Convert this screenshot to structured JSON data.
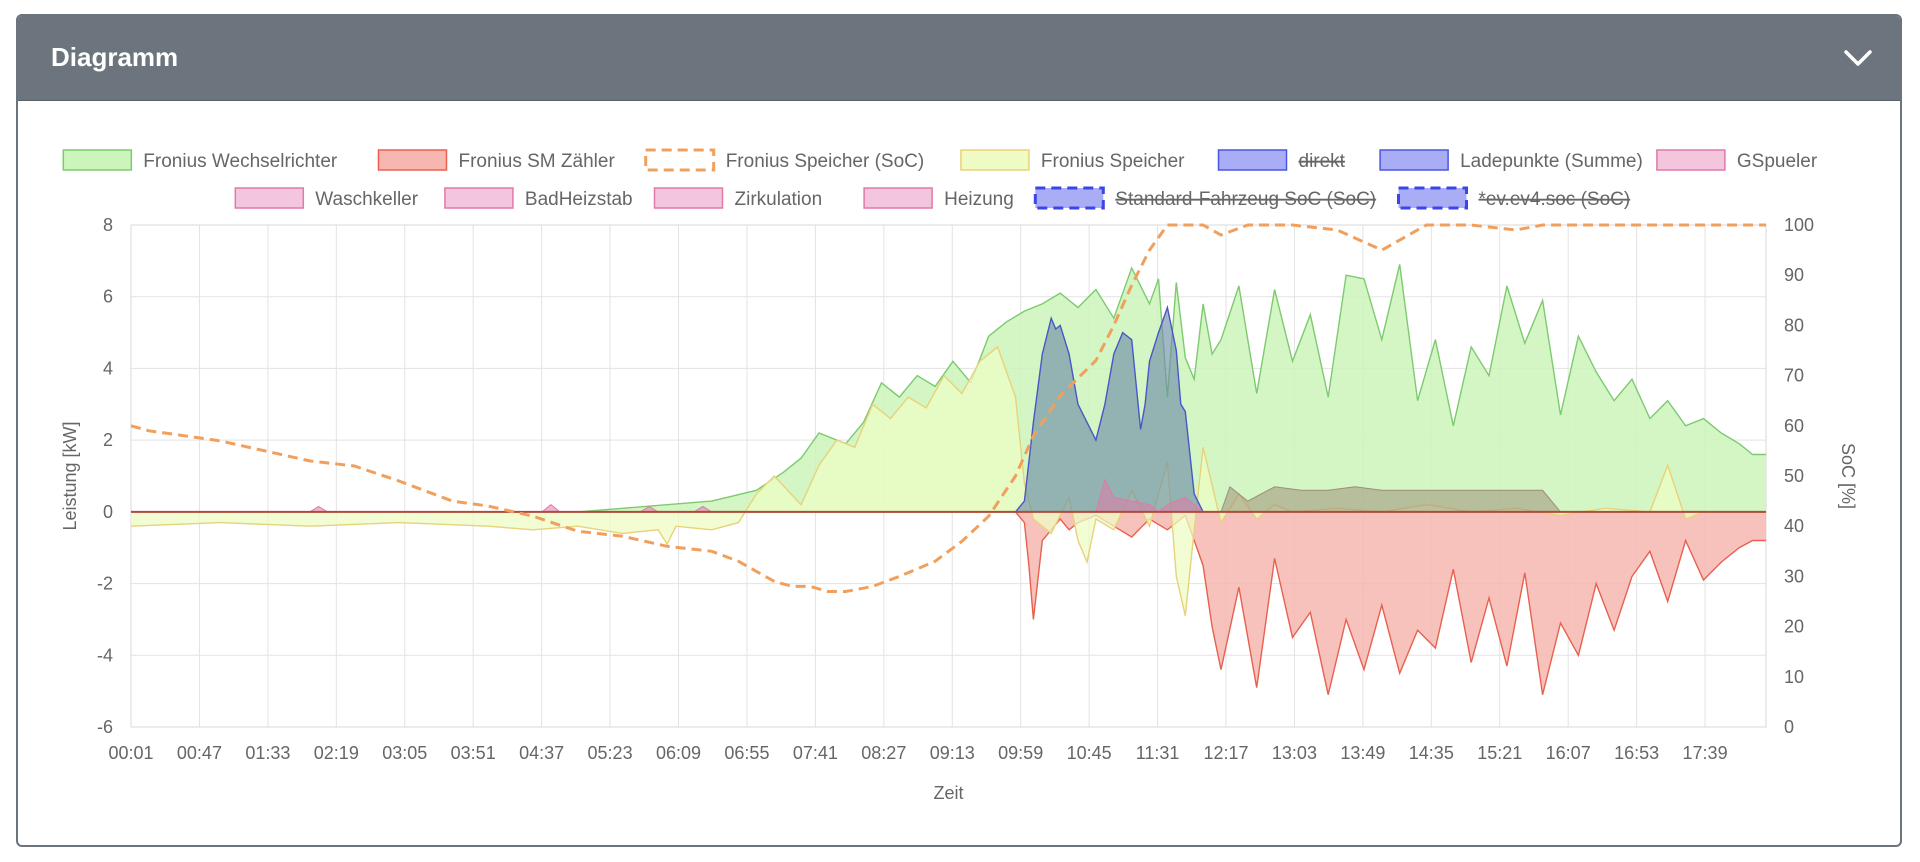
{
  "card": {
    "title": "Diagramm",
    "collapse_icon": "chevron-down-icon"
  },
  "chart_data": {
    "type": "area",
    "xlabel": "Zeit",
    "ylabel": "Leistung [kW]",
    "y2label": "SoC [%]",
    "ylim": [
      -6,
      8
    ],
    "y2lim": [
      0,
      100
    ],
    "yticks": [
      8,
      6,
      4,
      2,
      0,
      -2,
      -4,
      -6
    ],
    "y2ticks": [
      100,
      90,
      80,
      70,
      60,
      50,
      40,
      30,
      20,
      10,
      0
    ],
    "xticks": [
      "00:01",
      "00:47",
      "01:33",
      "02:19",
      "03:05",
      "03:51",
      "04:37",
      "05:23",
      "06:09",
      "06:55",
      "07:41",
      "08:27",
      "09:13",
      "09:59",
      "10:45",
      "11:31",
      "12:17",
      "13:03",
      "13:49",
      "14:35",
      "15:21",
      "16:07",
      "16:53",
      "17:39"
    ],
    "grid": true,
    "legend_position": "top",
    "legend": [
      {
        "name": "Fronius Wechselrichter",
        "fill": "#ccf5bb",
        "stroke": "#7dca6f",
        "style": "solid",
        "hidden": false
      },
      {
        "name": "Fronius SM Zähler",
        "fill": "#f7b7b0",
        "stroke": "#e8604f",
        "style": "solid",
        "hidden": false
      },
      {
        "name": "Fronius Speicher (SoC)",
        "fill": "#ffffff",
        "stroke": "#f0a05c",
        "style": "dashed",
        "hidden": false
      },
      {
        "name": "Fronius Speicher",
        "fill": "#eefcc4",
        "stroke": "#e8d27a",
        "style": "solid",
        "hidden": false
      },
      {
        "name": "direkt",
        "fill": "#a9adf5",
        "stroke": "#4a55e0",
        "style": "solid",
        "hidden": true
      },
      {
        "name": "Ladepunkte (Summe)",
        "fill": "#a9adf5",
        "stroke": "#4a55e0",
        "style": "solid",
        "hidden": false
      },
      {
        "name": "GSpueler",
        "fill": "#f4c6de",
        "stroke": "#e07aa8",
        "style": "solid",
        "hidden": false
      },
      {
        "name": "Waschkeller",
        "fill": "#f4c6de",
        "stroke": "#e07aa8",
        "style": "solid",
        "hidden": false
      },
      {
        "name": "BadHeizstab",
        "fill": "#f4c6de",
        "stroke": "#e07aa8",
        "style": "solid",
        "hidden": false
      },
      {
        "name": "Zirkulation",
        "fill": "#f4c6de",
        "stroke": "#e07aa8",
        "style": "solid",
        "hidden": false
      },
      {
        "name": "Heizung",
        "fill": "#f4c6de",
        "stroke": "#e07aa8",
        "style": "solid",
        "hidden": false
      },
      {
        "name": "Standard-Fahrzeug SoC (SoC)",
        "fill": "#a9adf5",
        "stroke": "#3b46e8",
        "style": "dashed",
        "hidden": true
      },
      {
        "name": "*ev.ev4.soc (SoC)",
        "fill": "#a9adf5",
        "stroke": "#3b46e8",
        "style": "dashed",
        "hidden": true
      }
    ],
    "series": [
      {
        "name": "Fronius Wechselrichter",
        "axis": "left",
        "x": [
          0,
          5,
          5.5,
          6,
          6.5,
          7,
          7.3,
          7.5,
          7.7,
          8,
          8.2,
          8.4,
          8.6,
          8.8,
          9,
          9.2,
          9.4,
          9.6,
          9.8,
          10,
          10.2,
          10.4,
          10.6,
          10.8,
          11,
          11.2,
          11.4,
          11.5,
          11.6,
          11.7,
          11.8,
          11.9,
          12,
          12.1,
          12.2,
          12.4,
          12.6,
          12.8,
          13,
          13.2,
          13.4,
          13.6,
          13.8,
          14,
          14.2,
          14.4,
          14.6,
          14.8,
          15,
          15.2,
          15.4,
          15.6,
          15.8,
          16,
          16.2,
          16.4,
          16.6,
          16.8,
          17,
          17.2,
          17.4,
          17.6,
          17.8,
          18,
          18.15,
          18.3
        ],
        "y": [
          0,
          0,
          0.1,
          0.2,
          0.3,
          0.6,
          1.1,
          1.5,
          2.2,
          1.9,
          2.5,
          3.6,
          3.2,
          3.8,
          3.5,
          4.2,
          3.6,
          4.9,
          5.3,
          5.6,
          5.8,
          6.1,
          5.7,
          6.2,
          5.4,
          6.8,
          5.8,
          6.5,
          3.2,
          6.4,
          4.3,
          3.7,
          5.8,
          4.4,
          4.8,
          6.3,
          3.3,
          6.2,
          4.2,
          5.5,
          3.2,
          6.6,
          6.5,
          4.8,
          6.9,
          3.1,
          4.8,
          2.4,
          4.6,
          3.8,
          6.3,
          4.7,
          5.9,
          2.7,
          4.9,
          3.9,
          3.1,
          3.7,
          2.6,
          3.1,
          2.4,
          2.6,
          2.2,
          1.9,
          1.6,
          1.6
        ]
      },
      {
        "name": "Fronius SM Zähler",
        "axis": "left",
        "x": [
          0,
          9.9,
          10,
          10.05,
          10.1,
          10.2,
          10.4,
          10.5,
          10.6,
          10.8,
          11,
          11.2,
          11.4,
          11.6,
          11.8,
          12,
          12.1,
          12.2,
          12.4,
          12.6,
          12.8,
          13,
          13.2,
          13.4,
          13.6,
          13.8,
          14,
          14.2,
          14.4,
          14.6,
          14.8,
          15,
          15.2,
          15.4,
          15.6,
          15.8,
          16,
          16.2,
          16.4,
          16.6,
          16.8,
          17,
          17.2,
          17.4,
          17.6,
          17.8,
          18,
          18.15,
          18.3
        ],
        "y": [
          0,
          0,
          -0.3,
          -1.5,
          -3.0,
          -0.8,
          -0.2,
          -0.5,
          -0.3,
          -0.1,
          -0.4,
          -0.7,
          -0.2,
          -0.5,
          -0.1,
          -1.5,
          -3.2,
          -4.4,
          -2.1,
          -4.9,
          -1.3,
          -3.5,
          -2.8,
          -5.1,
          -3.0,
          -4.4,
          -2.6,
          -4.5,
          -3.3,
          -3.8,
          -1.6,
          -4.2,
          -2.4,
          -4.3,
          -1.7,
          -5.1,
          -3.1,
          -4.0,
          -2.0,
          -3.3,
          -1.8,
          -1.1,
          -2.5,
          -0.8,
          -1.9,
          -1.4,
          -1.0,
          -0.8,
          -0.8
        ]
      },
      {
        "name": "Fronius Speicher",
        "axis": "left",
        "x": [
          0,
          1,
          2,
          3,
          4,
          4.5,
          5,
          5.5,
          5.9,
          6,
          6.1,
          6.5,
          6.8,
          7,
          7.2,
          7.5,
          7.7,
          7.9,
          8.1,
          8.3,
          8.5,
          8.7,
          8.9,
          9.1,
          9.3,
          9.5,
          9.7,
          9.9,
          10,
          10.1,
          10.3,
          10.5,
          10.6,
          10.7,
          10.8,
          11,
          11.2,
          11.4,
          11.6,
          11.7,
          11.8,
          11.9,
          12,
          12.2,
          12.4,
          12.6,
          12.8,
          13,
          13.5,
          14,
          14.5,
          15,
          15.5,
          16,
          16.5,
          17,
          17.2,
          17.4,
          17.6,
          17.8,
          18,
          18.3
        ],
        "y": [
          -0.4,
          -0.3,
          -0.4,
          -0.3,
          -0.4,
          -0.5,
          -0.4,
          -0.6,
          -0.5,
          -0.9,
          -0.4,
          -0.5,
          -0.3,
          0.5,
          1.0,
          0.2,
          1.3,
          2.0,
          1.8,
          3.0,
          2.6,
          3.2,
          2.9,
          3.8,
          3.3,
          4.2,
          4.6,
          3.2,
          0.8,
          -0.2,
          -0.6,
          0.4,
          -0.8,
          -1.4,
          -0.2,
          -0.5,
          0.6,
          -0.4,
          1.4,
          -1.8,
          -2.9,
          -0.5,
          1.8,
          -0.3,
          0.5,
          -0.2,
          0.2,
          0,
          0.1,
          0,
          0.2,
          0,
          0.1,
          -0.1,
          0.1,
          0,
          1.3,
          -0.2,
          0,
          0,
          0,
          0
        ]
      },
      {
        "name": "Ladepunkte (Summe)",
        "axis": "left",
        "x": [
          9.9,
          10,
          10.1,
          10.2,
          10.3,
          10.35,
          10.4,
          10.5,
          10.6,
          10.8,
          10.9,
          11,
          11.1,
          11.2,
          11.3,
          11.35,
          11.4,
          11.5,
          11.6,
          11.7,
          11.75,
          11.8,
          11.9,
          12
        ],
        "y": [
          0,
          0.3,
          2.5,
          4.4,
          5.4,
          5.1,
          5.2,
          4.4,
          3.0,
          2.0,
          3.0,
          4.4,
          5.0,
          4.8,
          2.3,
          3.0,
          4.2,
          5.0,
          5.7,
          4.5,
          3.0,
          2.8,
          0.5,
          0
        ]
      },
      {
        "name": "Fronius Speicher (SoC)",
        "axis": "right",
        "x": [
          0,
          0.2,
          0.6,
          1,
          1.5,
          2,
          2.5,
          3,
          3.3,
          3.6,
          4,
          4.5,
          5,
          5.5,
          6,
          6.5,
          6.8,
          7,
          7.2,
          7.4,
          7.6,
          7.8,
          8,
          8.3,
          8.6,
          9,
          9.3,
          9.6,
          9.9,
          10.1,
          10.4,
          10.8,
          11,
          11.2,
          11.4,
          11.6,
          11.8,
          12,
          12.2,
          12.5,
          13,
          13.5,
          14,
          14.5,
          15,
          15.5,
          15.8,
          16,
          16.5,
          17,
          17.5,
          18,
          18.3
        ],
        "y": [
          60,
          59,
          58,
          57,
          55,
          53,
          52,
          49,
          47,
          45,
          44,
          42,
          39,
          38,
          36,
          35,
          33,
          31,
          29,
          28,
          28,
          27,
          27,
          28,
          30,
          33,
          37,
          42,
          50,
          58,
          66,
          73,
          80,
          88,
          95,
          100,
          100,
          100,
          98,
          100,
          100,
          99,
          95,
          100,
          100,
          99,
          100,
          100,
          100,
          100,
          100,
          100,
          100
        ]
      },
      {
        "name": "GSpueler",
        "axis": "left",
        "x": [
          2.0,
          2.1,
          2.2,
          4.6,
          4.7,
          4.8,
          5.7,
          5.8,
          5.9,
          6.3,
          6.4,
          6.5
        ],
        "y": [
          0,
          0.15,
          0,
          0,
          0.2,
          0,
          0,
          0.15,
          0,
          0,
          0.15,
          0
        ]
      },
      {
        "name": "Waschkeller",
        "axis": "left",
        "x": [
          12.2,
          12.3,
          12.5,
          12.8,
          13.1,
          13.4,
          13.7,
          14,
          14.3,
          14.6,
          14.9,
          15.2,
          15.5,
          15.8,
          16
        ],
        "y": [
          0,
          0.7,
          0.3,
          0.7,
          0.6,
          0.6,
          0.7,
          0.6,
          0.6,
          0.6,
          0.6,
          0.6,
          0.6,
          0.6,
          0
        ]
      },
      {
        "name": "Heizung",
        "axis": "left",
        "x": [
          10.8,
          10.9,
          11,
          11.2,
          11.4,
          11.5,
          11.6,
          11.8,
          11.9,
          12
        ],
        "y": [
          0,
          0.9,
          0.4,
          0.3,
          0.2,
          0,
          0.2,
          0.4,
          0.2,
          0
        ]
      }
    ]
  }
}
